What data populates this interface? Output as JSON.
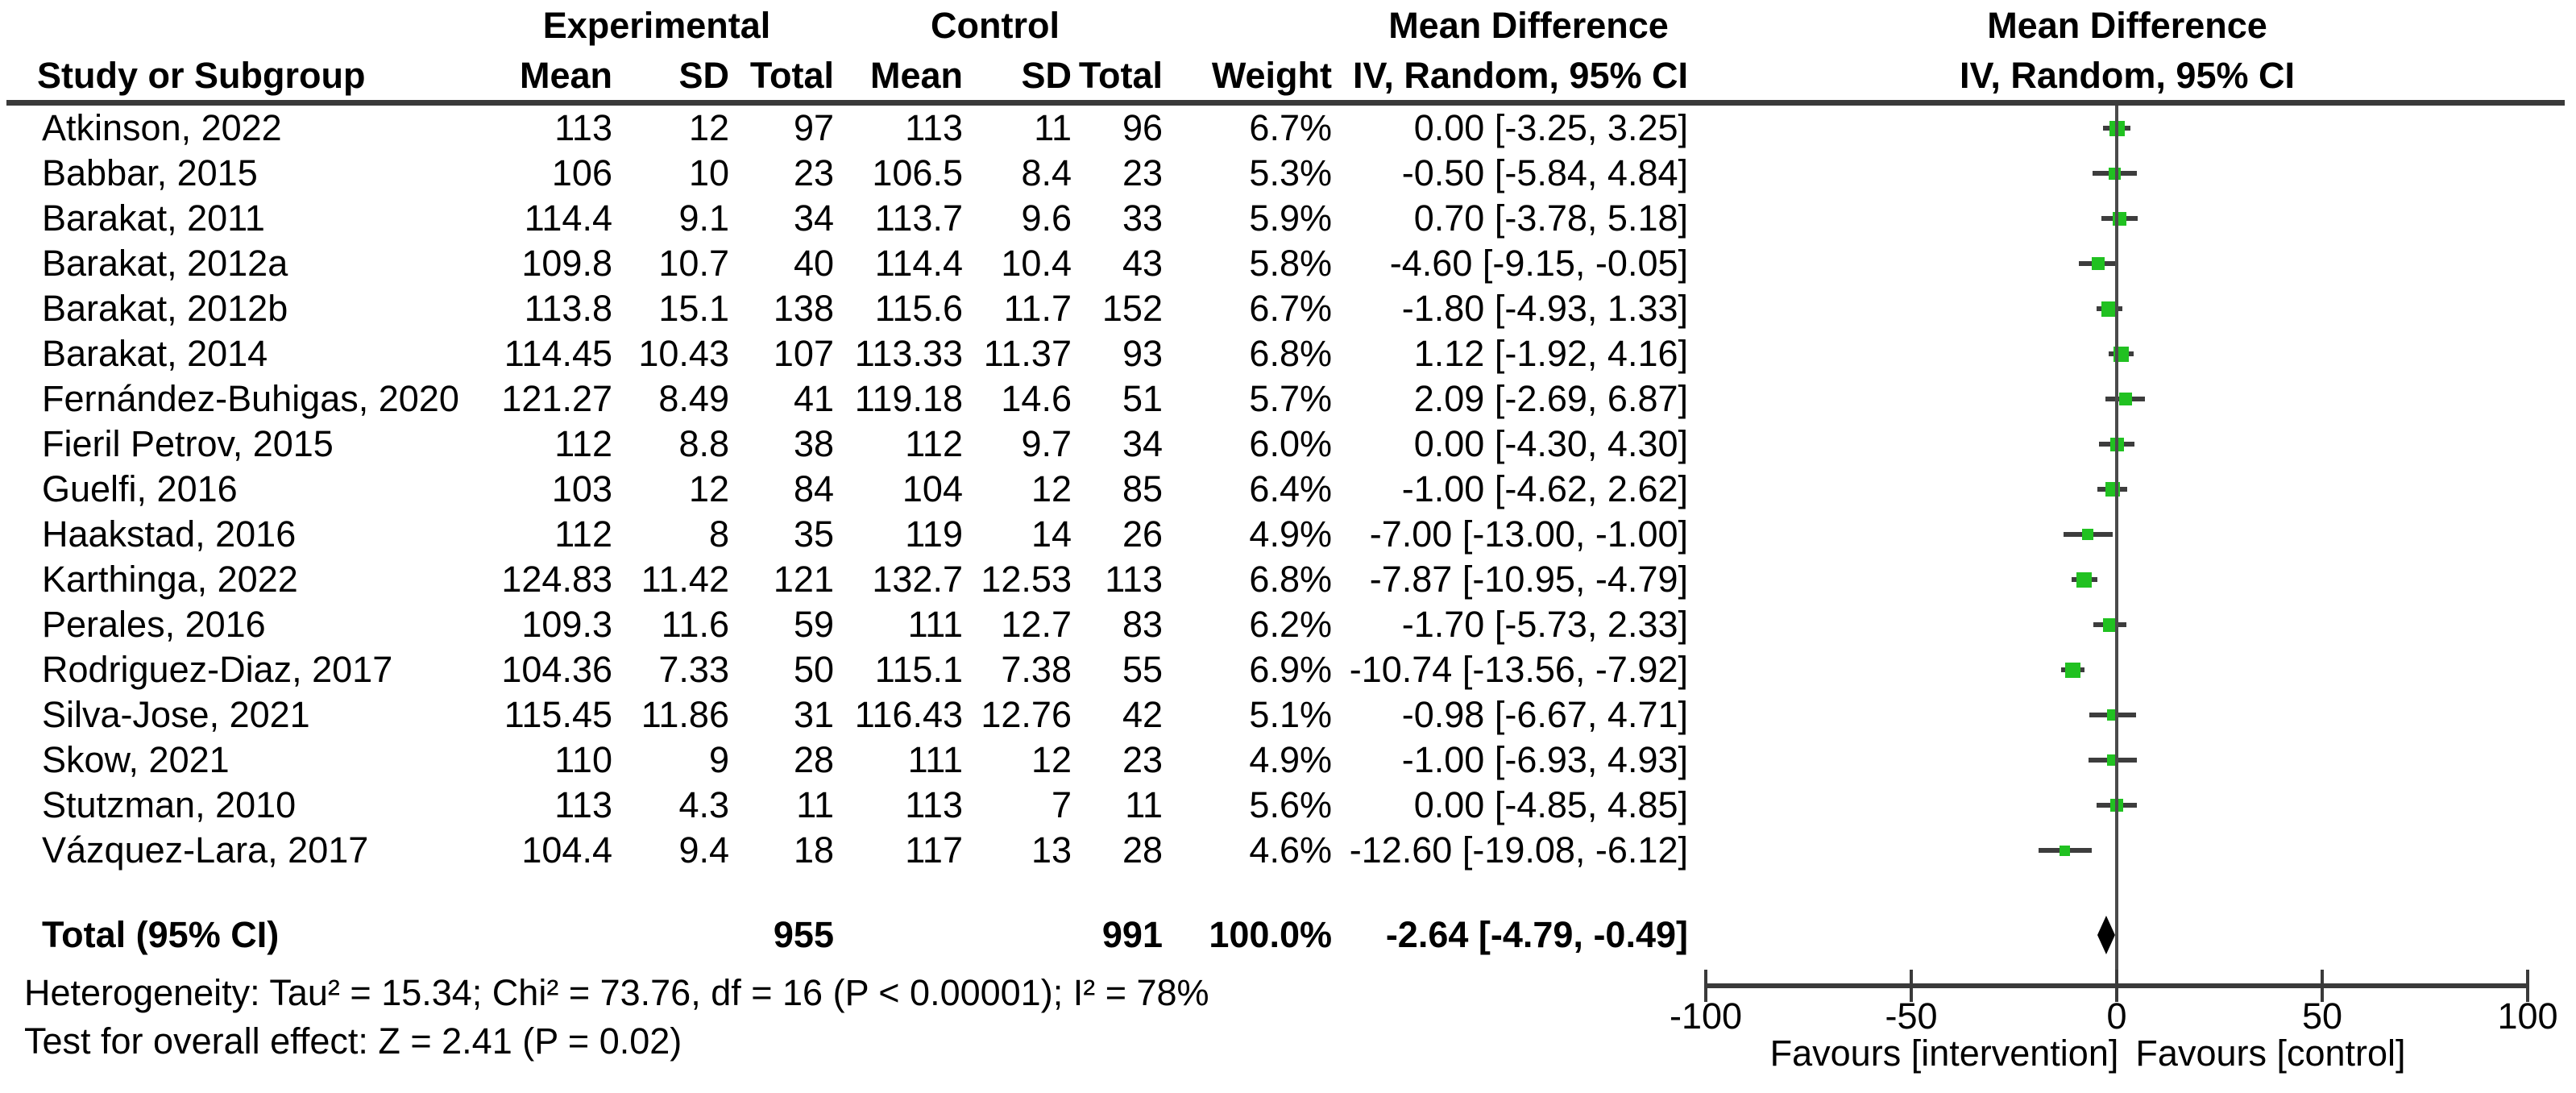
{
  "header": {
    "group_experimental": "Experimental",
    "group_control": "Control",
    "md_text_col_line1": "Mean Difference",
    "md_text_col_line2": "IV, Random, 95% CI",
    "md_plot_col_line1": "Mean Difference",
    "md_plot_col_line2": "IV, Random, 95% CI",
    "study_col": "Study or Subgroup",
    "mean_col": "Mean",
    "sd_col": "SD",
    "total_col": "Total",
    "weight_col": "Weight"
  },
  "table": {
    "studies": [
      {
        "name": "Atkinson, 2022",
        "e_mean": "113",
        "e_sd": "12",
        "e_total": "97",
        "c_mean": "113",
        "c_sd": "11",
        "c_total": "96",
        "weight": "6.7%",
        "ci_text": "0.00 [-3.25, 3.25]",
        "md": 0.0,
        "lo": -3.25,
        "hi": 3.25,
        "w": 6.7
      },
      {
        "name": "Babbar, 2015",
        "e_mean": "106",
        "e_sd": "10",
        "e_total": "23",
        "c_mean": "106.5",
        "c_sd": "8.4",
        "c_total": "23",
        "weight": "5.3%",
        "ci_text": "-0.50 [-5.84, 4.84]",
        "md": -0.5,
        "lo": -5.84,
        "hi": 4.84,
        "w": 5.3
      },
      {
        "name": "Barakat, 2011",
        "e_mean": "114.4",
        "e_sd": "9.1",
        "e_total": "34",
        "c_mean": "113.7",
        "c_sd": "9.6",
        "c_total": "33",
        "weight": "5.9%",
        "ci_text": "0.70 [-3.78, 5.18]",
        "md": 0.7,
        "lo": -3.78,
        "hi": 5.18,
        "w": 5.9
      },
      {
        "name": "Barakat, 2012a",
        "e_mean": "109.8",
        "e_sd": "10.7",
        "e_total": "40",
        "c_mean": "114.4",
        "c_sd": "10.4",
        "c_total": "43",
        "weight": "5.8%",
        "ci_text": "-4.60 [-9.15, -0.05]",
        "md": -4.6,
        "lo": -9.15,
        "hi": -0.05,
        "w": 5.8
      },
      {
        "name": "Barakat, 2012b",
        "e_mean": "113.8",
        "e_sd": "15.1",
        "e_total": "138",
        "c_mean": "115.6",
        "c_sd": "11.7",
        "c_total": "152",
        "weight": "6.7%",
        "ci_text": "-1.80 [-4.93, 1.33]",
        "md": -1.8,
        "lo": -4.93,
        "hi": 1.33,
        "w": 6.7
      },
      {
        "name": "Barakat, 2014",
        "e_mean": "114.45",
        "e_sd": "10.43",
        "e_total": "107",
        "c_mean": "113.33",
        "c_sd": "11.37",
        "c_total": "93",
        "weight": "6.8%",
        "ci_text": "1.12 [-1.92, 4.16]",
        "md": 1.12,
        "lo": -1.92,
        "hi": 4.16,
        "w": 6.8
      },
      {
        "name": "Fernández-Buhigas, 2020",
        "e_mean": "121.27",
        "e_sd": "8.49",
        "e_total": "41",
        "c_mean": "119.18",
        "c_sd": "14.6",
        "c_total": "51",
        "weight": "5.7%",
        "ci_text": "2.09 [-2.69, 6.87]",
        "md": 2.09,
        "lo": -2.69,
        "hi": 6.87,
        "w": 5.7
      },
      {
        "name": "Fieril Petrov, 2015",
        "e_mean": "112",
        "e_sd": "8.8",
        "e_total": "38",
        "c_mean": "112",
        "c_sd": "9.7",
        "c_total": "34",
        "weight": "6.0%",
        "ci_text": "0.00 [-4.30, 4.30]",
        "md": 0.0,
        "lo": -4.3,
        "hi": 4.3,
        "w": 6.0
      },
      {
        "name": "Guelfi, 2016",
        "e_mean": "103",
        "e_sd": "12",
        "e_total": "84",
        "c_mean": "104",
        "c_sd": "12",
        "c_total": "85",
        "weight": "6.4%",
        "ci_text": "-1.00 [-4.62, 2.62]",
        "md": -1.0,
        "lo": -4.62,
        "hi": 2.62,
        "w": 6.4
      },
      {
        "name": "Haakstad, 2016",
        "e_mean": "112",
        "e_sd": "8",
        "e_total": "35",
        "c_mean": "119",
        "c_sd": "14",
        "c_total": "26",
        "weight": "4.9%",
        "ci_text": "-7.00 [-13.00, -1.00]",
        "md": -7.0,
        "lo": -13.0,
        "hi": -1.0,
        "w": 4.9
      },
      {
        "name": "Karthinga, 2022",
        "e_mean": "124.83",
        "e_sd": "11.42",
        "e_total": "121",
        "c_mean": "132.7",
        "c_sd": "12.53",
        "c_total": "113",
        "weight": "6.8%",
        "ci_text": "-7.87 [-10.95, -4.79]",
        "md": -7.87,
        "lo": -10.95,
        "hi": -4.79,
        "w": 6.8
      },
      {
        "name": "Perales, 2016",
        "e_mean": "109.3",
        "e_sd": "11.6",
        "e_total": "59",
        "c_mean": "111",
        "c_sd": "12.7",
        "c_total": "83",
        "weight": "6.2%",
        "ci_text": "-1.70 [-5.73, 2.33]",
        "md": -1.7,
        "lo": -5.73,
        "hi": 2.33,
        "w": 6.2
      },
      {
        "name": "Rodriguez-Diaz, 2017",
        "e_mean": "104.36",
        "e_sd": "7.33",
        "e_total": "50",
        "c_mean": "115.1",
        "c_sd": "7.38",
        "c_total": "55",
        "weight": "6.9%",
        "ci_text": "-10.74 [-13.56, -7.92]",
        "md": -10.74,
        "lo": -13.56,
        "hi": -7.92,
        "w": 6.9
      },
      {
        "name": "Silva-Jose, 2021",
        "e_mean": "115.45",
        "e_sd": "11.86",
        "e_total": "31",
        "c_mean": "116.43",
        "c_sd": "12.76",
        "c_total": "42",
        "weight": "5.1%",
        "ci_text": "-0.98 [-6.67, 4.71]",
        "md": -0.98,
        "lo": -6.67,
        "hi": 4.71,
        "w": 5.1
      },
      {
        "name": "Skow, 2021",
        "e_mean": "110",
        "e_sd": "9",
        "e_total": "28",
        "c_mean": "111",
        "c_sd": "12",
        "c_total": "23",
        "weight": "4.9%",
        "ci_text": "-1.00 [-6.93, 4.93]",
        "md": -1.0,
        "lo": -6.93,
        "hi": 4.93,
        "w": 4.9
      },
      {
        "name": "Stutzman, 2010",
        "e_mean": "113",
        "e_sd": "4.3",
        "e_total": "11",
        "c_mean": "113",
        "c_sd": "7",
        "c_total": "11",
        "weight": "5.6%",
        "ci_text": "0.00 [-4.85, 4.85]",
        "md": 0.0,
        "lo": -4.85,
        "hi": 4.85,
        "w": 5.6
      },
      {
        "name": "Vázquez-Lara, 2017",
        "e_mean": "104.4",
        "e_sd": "9.4",
        "e_total": "18",
        "c_mean": "117",
        "c_sd": "13",
        "c_total": "28",
        "weight": "4.6%",
        "ci_text": "-12.60 [-19.08, -6.12]",
        "md": -12.6,
        "lo": -19.08,
        "hi": -6.12,
        "w": 4.6
      }
    ],
    "total": {
      "label": "Total (95% CI)",
      "e_total": "955",
      "c_total": "991",
      "weight": "100.0%",
      "ci_text": "-2.64 [-4.79, -0.49]",
      "md": -2.64,
      "lo": -4.79,
      "hi": -0.49
    }
  },
  "footer": {
    "heterogeneity": "Heterogeneity: Tau² = 15.34; Chi² = 73.76, df = 16 (P < 0.00001); I² = 78%",
    "overall_effect": "Test for overall effect: Z = 2.41 (P = 0.02)"
  },
  "axis": {
    "min": -100,
    "max": 100,
    "ticks": [
      "-100",
      "-50",
      "0",
      "50",
      "100"
    ],
    "tick_values": [
      -100,
      -50,
      0,
      50,
      100
    ],
    "label_left": "Favours [intervention]",
    "label_right": "Favours [control]"
  },
  "colors": {
    "marker_green": "#21c121",
    "line_gray": "#3d3d3d",
    "axis_gray": "#3a3a3a",
    "diamond_black": "#000000"
  },
  "chart_data": {
    "type": "forest",
    "title": "Mean Difference, IV, Random, 95% CI",
    "studies": [
      {
        "study": "Atkinson, 2022",
        "mean_diff": 0.0,
        "ci_lower": -3.25,
        "ci_upper": 3.25,
        "weight_pct": 6.7
      },
      {
        "study": "Babbar, 2015",
        "mean_diff": -0.5,
        "ci_lower": -5.84,
        "ci_upper": 4.84,
        "weight_pct": 5.3
      },
      {
        "study": "Barakat, 2011",
        "mean_diff": 0.7,
        "ci_lower": -3.78,
        "ci_upper": 5.18,
        "weight_pct": 5.9
      },
      {
        "study": "Barakat, 2012a",
        "mean_diff": -4.6,
        "ci_lower": -9.15,
        "ci_upper": -0.05,
        "weight_pct": 5.8
      },
      {
        "study": "Barakat, 2012b",
        "mean_diff": -1.8,
        "ci_lower": -4.93,
        "ci_upper": 1.33,
        "weight_pct": 6.7
      },
      {
        "study": "Barakat, 2014",
        "mean_diff": 1.12,
        "ci_lower": -1.92,
        "ci_upper": 4.16,
        "weight_pct": 6.8
      },
      {
        "study": "Fernández-Buhigas, 2020",
        "mean_diff": 2.09,
        "ci_lower": -2.69,
        "ci_upper": 6.87,
        "weight_pct": 5.7
      },
      {
        "study": "Fieril Petrov, 2015",
        "mean_diff": 0.0,
        "ci_lower": -4.3,
        "ci_upper": 4.3,
        "weight_pct": 6.0
      },
      {
        "study": "Guelfi, 2016",
        "mean_diff": -1.0,
        "ci_lower": -4.62,
        "ci_upper": 2.62,
        "weight_pct": 6.4
      },
      {
        "study": "Haakstad, 2016",
        "mean_diff": -7.0,
        "ci_lower": -13.0,
        "ci_upper": -1.0,
        "weight_pct": 4.9
      },
      {
        "study": "Karthinga, 2022",
        "mean_diff": -7.87,
        "ci_lower": -10.95,
        "ci_upper": -4.79,
        "weight_pct": 6.8
      },
      {
        "study": "Perales, 2016",
        "mean_diff": -1.7,
        "ci_lower": -5.73,
        "ci_upper": 2.33,
        "weight_pct": 6.2
      },
      {
        "study": "Rodriguez-Diaz, 2017",
        "mean_diff": -10.74,
        "ci_lower": -13.56,
        "ci_upper": -7.92,
        "weight_pct": 6.9
      },
      {
        "study": "Silva-Jose, 2021",
        "mean_diff": -0.98,
        "ci_lower": -6.67,
        "ci_upper": 4.71,
        "weight_pct": 5.1
      },
      {
        "study": "Skow, 2021",
        "mean_diff": -1.0,
        "ci_lower": -6.93,
        "ci_upper": 4.93,
        "weight_pct": 4.9
      },
      {
        "study": "Stutzman, 2010",
        "mean_diff": 0.0,
        "ci_lower": -4.85,
        "ci_upper": 4.85,
        "weight_pct": 5.6
      },
      {
        "study": "Vázquez-Lara, 2017",
        "mean_diff": -12.6,
        "ci_lower": -19.08,
        "ci_upper": -6.12,
        "weight_pct": 4.6
      }
    ],
    "total": {
      "label": "Total (95% CI)",
      "mean_diff": -2.64,
      "ci_lower": -4.79,
      "ci_upper": -0.49,
      "weight_pct": 100.0,
      "n_experimental": 955,
      "n_control": 991
    },
    "xlim": [
      -100,
      100
    ],
    "x_ticks": [
      -100,
      -50,
      0,
      50,
      100
    ],
    "x_label_left": "Favours [intervention]",
    "x_label_right": "Favours [control]",
    "heterogeneity": "Tau² = 15.34; Chi² = 73.76, df = 16 (P < 0.00001); I² = 78%",
    "overall_effect_test": "Z = 2.41 (P = 0.02)",
    "grid": false,
    "marker_color": "#21c121"
  }
}
